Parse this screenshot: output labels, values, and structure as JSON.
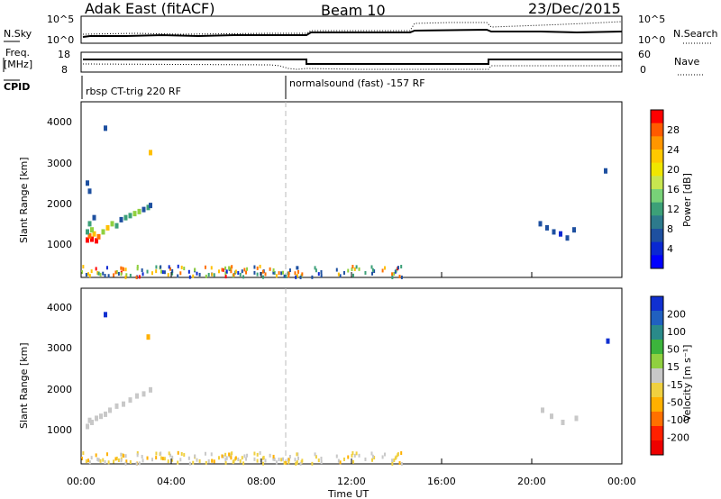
{
  "header": {
    "station": "Adak East (fitACF)",
    "beam": "Beam 10",
    "date": "23/Dec/2015"
  },
  "noise_panel": {
    "left_label": "N.Sky",
    "left_ticks": [
      "10^5",
      "10^0"
    ],
    "right_ticks": [
      "10^5",
      "10^0"
    ],
    "right_label": "N.Search"
  },
  "freq_panel": {
    "left_label_line1": "Freq.",
    "left_label_line2": "[MHz]",
    "left_ticks": [
      "18",
      "8"
    ],
    "right_ticks": [
      "60",
      "0"
    ],
    "right_label": "Nave"
  },
  "cpid": {
    "label": "CPID",
    "segments": [
      {
        "start_hour": 0.0,
        "text": "rbsp CT-trig 220 RF"
      },
      {
        "start_hour": 9.0,
        "text": "normalsound (fast) -157 RF"
      }
    ]
  },
  "x_axis": {
    "label": "Time UT",
    "ticks": [
      "00:00",
      "04:00",
      "08:00",
      "12:00",
      "16:00",
      "20:00",
      "00:00"
    ],
    "tick_hours": [
      0,
      4,
      8,
      12,
      16,
      20,
      24
    ]
  },
  "power_panel": {
    "ylabel": "Slant Range [km]",
    "yticks": [
      "4000",
      "3000",
      "2000",
      "1000"
    ],
    "ytick_values": [
      4000,
      3000,
      2000,
      1000
    ],
    "colorbar_label": "Power [dB]",
    "colorbar_ticks": [
      "28",
      "24",
      "20",
      "16",
      "12",
      "8",
      "4"
    ],
    "colorbar_colors": [
      "#ff0000",
      "#ff5a00",
      "#ff9600",
      "#ffc800",
      "#f0e600",
      "#c8e650",
      "#78d278",
      "#3ca078",
      "#2d7a8c",
      "#1e50a0",
      "#0a28d2",
      "#0000ff"
    ]
  },
  "velocity_panel": {
    "ylabel": "Slant Range [km]",
    "yticks": [
      "4000",
      "3000",
      "2000",
      "1000"
    ],
    "ytick_values": [
      4000,
      3000,
      2000,
      1000
    ],
    "colorbar_label": "Velocity [m s⁻¹]",
    "colorbar_ticks": [
      "200",
      "100",
      "50",
      "15",
      "-15",
      "-50",
      "-100",
      "-200"
    ],
    "colorbar_colors": [
      "#1030d0",
      "#2060c0",
      "#2a8a8a",
      "#3cb43c",
      "#90d040",
      "#c8c8c8",
      "#f0d040",
      "#ffb000",
      "#ff7000",
      "#ff2000",
      "#ee0000"
    ]
  },
  "chart_data": {
    "type": "heatmap",
    "title": "Adak East (fitACF)  Beam 10  23/Dec/2015",
    "xlabel": "Time UT",
    "ylabel": "Slant Range [km]",
    "xlim": [
      0,
      24
    ],
    "ylim": [
      180,
      4500
    ],
    "power_scatter": [
      {
        "t": 0.2,
        "r": 1100,
        "v": 28
      },
      {
        "t": 0.4,
        "r": 1120,
        "v": 28
      },
      {
        "t": 0.6,
        "r": 1080,
        "v": 26
      },
      {
        "t": 0.3,
        "r": 1200,
        "v": 24
      },
      {
        "t": 0.5,
        "r": 1250,
        "v": 20
      },
      {
        "t": 0.7,
        "r": 1180,
        "v": 22
      },
      {
        "t": 0.2,
        "r": 1300,
        "v": 12
      },
      {
        "t": 0.4,
        "r": 1350,
        "v": 14
      },
      {
        "t": 0.9,
        "r": 1300,
        "v": 16
      },
      {
        "t": 1.1,
        "r": 1400,
        "v": 18
      },
      {
        "t": 1.3,
        "r": 1500,
        "v": 14
      },
      {
        "t": 1.5,
        "r": 1450,
        "v": 10
      },
      {
        "t": 1.7,
        "r": 1600,
        "v": 8
      },
      {
        "t": 1.9,
        "r": 1650,
        "v": 12
      },
      {
        "t": 2.1,
        "r": 1700,
        "v": 10
      },
      {
        "t": 2.3,
        "r": 1750,
        "v": 14
      },
      {
        "t": 2.5,
        "r": 1800,
        "v": 16
      },
      {
        "t": 2.7,
        "r": 1850,
        "v": 8
      },
      {
        "t": 2.9,
        "r": 1900,
        "v": 12
      },
      {
        "t": 3.0,
        "r": 1950,
        "v": 8
      },
      {
        "t": 0.3,
        "r": 1500,
        "v": 10
      },
      {
        "t": 0.5,
        "r": 1650,
        "v": 8
      },
      {
        "t": 0.2,
        "r": 2500,
        "v": 6
      },
      {
        "t": 0.3,
        "r": 2300,
        "v": 8
      },
      {
        "t": 1.0,
        "r": 3850,
        "v": 6
      },
      {
        "t": 3.0,
        "r": 3250,
        "v": 20
      },
      {
        "t": 20.3,
        "r": 1500,
        "v": 6
      },
      {
        "t": 20.6,
        "r": 1400,
        "v": 8
      },
      {
        "t": 20.9,
        "r": 1300,
        "v": 6
      },
      {
        "t": 21.2,
        "r": 1250,
        "v": 4
      },
      {
        "t": 21.5,
        "r": 1150,
        "v": 6
      },
      {
        "t": 21.8,
        "r": 1350,
        "v": 8
      },
      {
        "t": 23.2,
        "r": 2800,
        "v": 6
      }
    ],
    "velocity_scatter": [
      {
        "t": 0.2,
        "r": 1100,
        "v": 0
      },
      {
        "t": 0.4,
        "r": 1200,
        "v": 0
      },
      {
        "t": 0.6,
        "r": 1300,
        "v": 0
      },
      {
        "t": 0.8,
        "r": 1350,
        "v": 0
      },
      {
        "t": 1.0,
        "r": 1400,
        "v": 0
      },
      {
        "t": 1.2,
        "r": 1500,
        "v": 0
      },
      {
        "t": 1.5,
        "r": 1600,
        "v": 0
      },
      {
        "t": 1.8,
        "r": 1650,
        "v": 0
      },
      {
        "t": 2.1,
        "r": 1750,
        "v": 0
      },
      {
        "t": 2.4,
        "r": 1850,
        "v": 0
      },
      {
        "t": 2.7,
        "r": 1900,
        "v": 0
      },
      {
        "t": 3.0,
        "r": 2000,
        "v": 0
      },
      {
        "t": 0.3,
        "r": 1250,
        "v": 20
      },
      {
        "t": 2.9,
        "r": 3300,
        "v": -60
      },
      {
        "t": 1.0,
        "r": 3850,
        "v": 150
      },
      {
        "t": 20.4,
        "r": 1500,
        "v": 0
      },
      {
        "t": 20.8,
        "r": 1350,
        "v": 0
      },
      {
        "t": 21.3,
        "r": 1200,
        "v": 0
      },
      {
        "t": 21.9,
        "r": 1300,
        "v": 0
      },
      {
        "t": 23.3,
        "r": 3200,
        "v": 180
      }
    ],
    "near_range_band": {
      "t_start": 0,
      "t_end": 14.5,
      "r_min": 180,
      "r_max": 450
    }
  }
}
